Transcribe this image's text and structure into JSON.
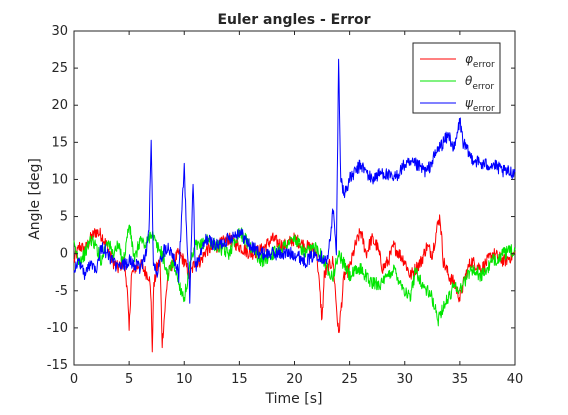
{
  "chart_data": {
    "type": "line",
    "title": "Euler angles - Error",
    "xlabel": "Time [s]",
    "ylabel": "Angle [deg]",
    "xlim": [
      0,
      40
    ],
    "ylim": [
      -15,
      30
    ],
    "xticks": [
      "0",
      "5",
      "10",
      "15",
      "20",
      "25",
      "30",
      "35",
      "40"
    ],
    "yticks": [
      "-15",
      "-10",
      "-5",
      "0",
      "5",
      "10",
      "15",
      "20",
      "25",
      "30"
    ],
    "grid": false,
    "legend_position": "top-right",
    "series": [
      {
        "name": "φerror",
        "symbol": "φ",
        "subscript": "error",
        "color": "#ff0000",
        "x": [
          0,
          0.5,
          1,
          1.5,
          2,
          2.5,
          3,
          3.5,
          4,
          4.5,
          4.8,
          5,
          5.2,
          5.5,
          6,
          6.5,
          6.8,
          7,
          7.1,
          7.2,
          7.5,
          7.8,
          8,
          8.5,
          9,
          9.5,
          10,
          10.5,
          11,
          11.5,
          12,
          13,
          14,
          15,
          16,
          17,
          18,
          19,
          20,
          21,
          22,
          22.5,
          22.7,
          23,
          23.5,
          24,
          24.5,
          25,
          25.5,
          26,
          26.5,
          27,
          27.5,
          28,
          28.5,
          29,
          29.5,
          30,
          30.5,
          31,
          31.5,
          32,
          32.5,
          33,
          33.2,
          33.5,
          34,
          34.5,
          35,
          35.5,
          36,
          37,
          38,
          39,
          40
        ],
        "y": [
          -1,
          1,
          0.5,
          2,
          3,
          2.5,
          1,
          -1,
          -2,
          -1,
          -4,
          -10.5,
          -3,
          -2,
          -1.5,
          -2.5,
          -3,
          -6,
          -14,
          -5,
          -2,
          -1,
          -12,
          -3,
          -1,
          0,
          -1,
          -3,
          -1,
          -1,
          0.5,
          1,
          2,
          1,
          0,
          0.5,
          2,
          1,
          2,
          1,
          0.5,
          -9,
          -3,
          -2,
          -1,
          -11,
          -3,
          -2,
          1,
          3,
          0,
          2,
          1,
          -2,
          -1,
          1,
          0,
          -1,
          -3,
          -2,
          -1,
          1,
          0,
          4,
          5,
          -1,
          -3,
          -4,
          -6,
          -3,
          -1,
          -2,
          0,
          -1,
          0
        ]
      },
      {
        "name": "θerror",
        "symbol": "θ",
        "subscript": "error",
        "color": "#00e600",
        "x": [
          0,
          0.5,
          1,
          1.5,
          2,
          2.5,
          3,
          3.5,
          4,
          4.5,
          5,
          5.5,
          6,
          6.5,
          7,
          7.5,
          8,
          8.5,
          9,
          9.5,
          10,
          10.5,
          11,
          11.5,
          12,
          13,
          14,
          15,
          16,
          17,
          18,
          19,
          20,
          21,
          22,
          23,
          23.5,
          24,
          25,
          26,
          27,
          28,
          29,
          30,
          30.5,
          31,
          31.5,
          32,
          32.5,
          33,
          33.5,
          34,
          34.5,
          35,
          36,
          37,
          38,
          39,
          40
        ],
        "y": [
          1,
          -1,
          0,
          2,
          1,
          -1,
          2,
          0,
          1,
          -1,
          4,
          -1,
          2,
          1,
          3,
          1,
          0,
          -3,
          -1,
          -4,
          -6,
          -2,
          1,
          1,
          2,
          1,
          0,
          3,
          1,
          -1,
          0,
          1,
          2,
          0,
          1,
          -2,
          -3,
          0,
          -3,
          -2,
          -4,
          -4,
          -2,
          -5,
          -6,
          -2,
          -4,
          -5,
          -6,
          -9,
          -7,
          -6,
          -4,
          -5,
          -2,
          -3,
          -1,
          0,
          0.5
        ]
      },
      {
        "name": "ψerror",
        "symbol": "ψ",
        "subscript": "error",
        "color": "#0000ff",
        "x": [
          0,
          0.5,
          1,
          1.5,
          2,
          2.5,
          3,
          3.5,
          4,
          5,
          6,
          6.5,
          6.8,
          7,
          7.2,
          7.5,
          8,
          8.5,
          9,
          9.5,
          10,
          10.2,
          10.5,
          10.8,
          11,
          11.5,
          12,
          13,
          14,
          15,
          16,
          17,
          18,
          19,
          20,
          21,
          22,
          23,
          23.5,
          23.8,
          24,
          24.2,
          24.5,
          25,
          25.5,
          26,
          27,
          28,
          29,
          30,
          31,
          32,
          33,
          33.5,
          34,
          34.5,
          35,
          35.3,
          35.6,
          36,
          37,
          38,
          39,
          40
        ],
        "y": [
          -2,
          -1,
          -3,
          -1,
          -2,
          1,
          0,
          -1,
          -2,
          -1,
          -2,
          0,
          3,
          15,
          -1,
          -3,
          0,
          1,
          0,
          -3,
          12,
          3,
          -6,
          10,
          -2,
          0,
          2,
          1,
          2,
          3,
          1,
          0,
          0,
          0,
          0,
          -1,
          0,
          -1,
          6,
          0,
          26,
          10,
          8,
          10,
          11,
          12,
          10,
          11,
          10,
          12,
          12,
          11,
          14,
          15,
          16,
          14,
          18,
          15,
          14,
          13,
          12,
          12,
          11,
          11
        ]
      }
    ]
  }
}
